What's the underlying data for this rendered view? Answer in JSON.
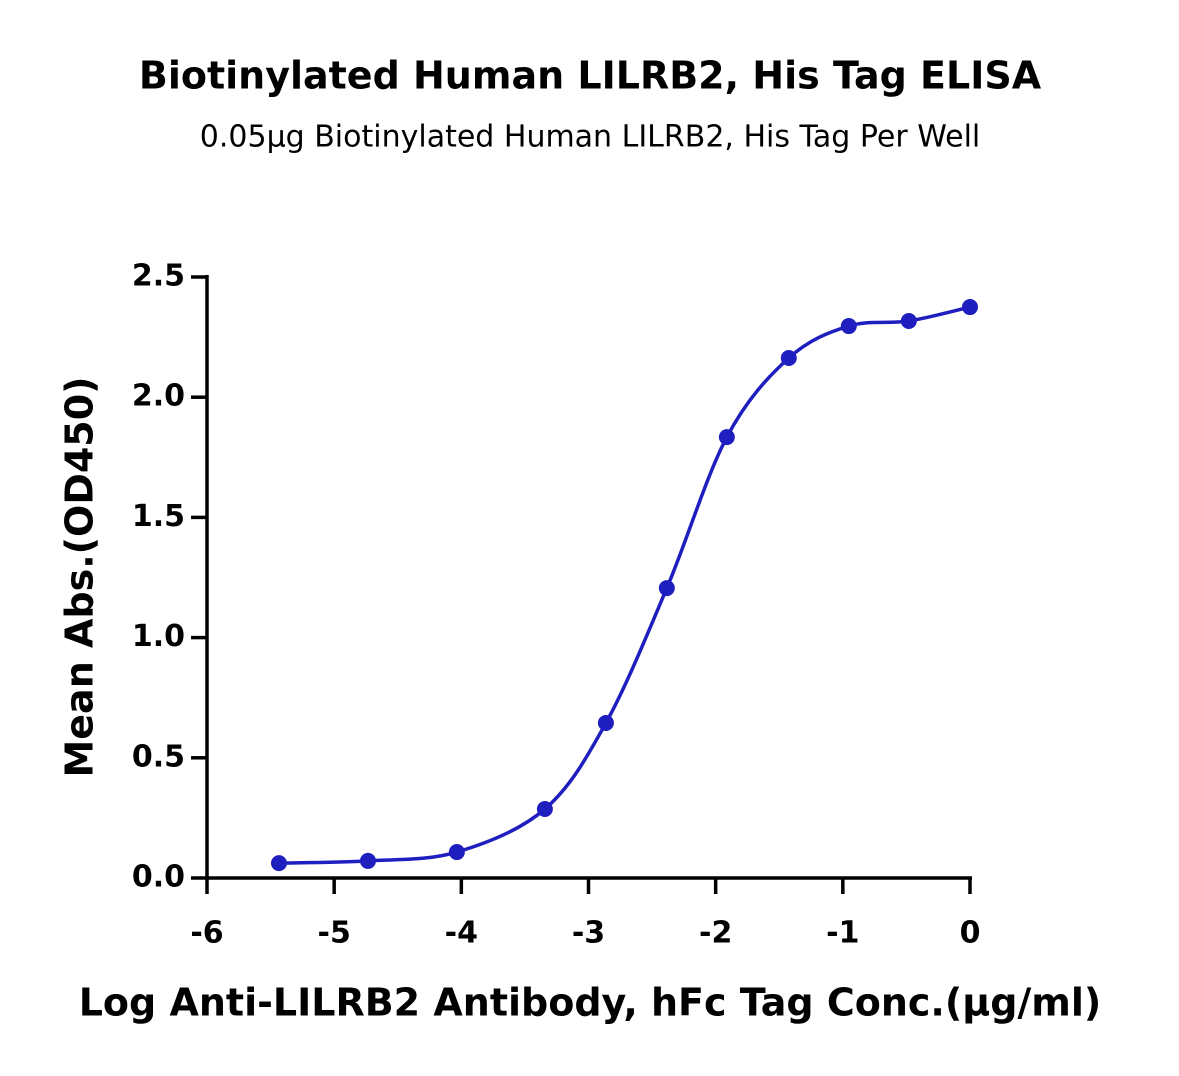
{
  "chart_data": {
    "type": "scatter",
    "title": "Biotinylated Human LILRB2, His Tag ELISA",
    "subtitle": "0.05μg Biotinylated Human LILRB2, His Tag Per Well",
    "x_label": "Log Anti-LILRB2 Antibody, hFc Tag Conc.(μg/ml)",
    "y_label": "Mean Abs.(OD450)",
    "x": [
      -5.434,
      -4.734,
      -4.035,
      -3.343,
      -2.863,
      -2.384,
      -1.912,
      -1.425,
      -0.953,
      -0.481,
      0
    ],
    "values": [
      0.062,
      0.071,
      0.108,
      0.287,
      0.645,
      1.206,
      1.834,
      2.163,
      2.296,
      2.317,
      2.375
    ],
    "color": "#1f1fbf",
    "xlim": [
      -6,
      0
    ],
    "xticks": [
      -6,
      -5,
      -4,
      -3,
      -2,
      -1,
      0
    ],
    "ylim": [
      0,
      2.5
    ],
    "yticks": [
      {
        "value": 0,
        "label": "0.0"
      },
      0.5,
      {
        "value": 1,
        "label": "1.0"
      },
      1.5,
      {
        "value": 2,
        "label": "2.0"
      },
      2.5
    ]
  }
}
